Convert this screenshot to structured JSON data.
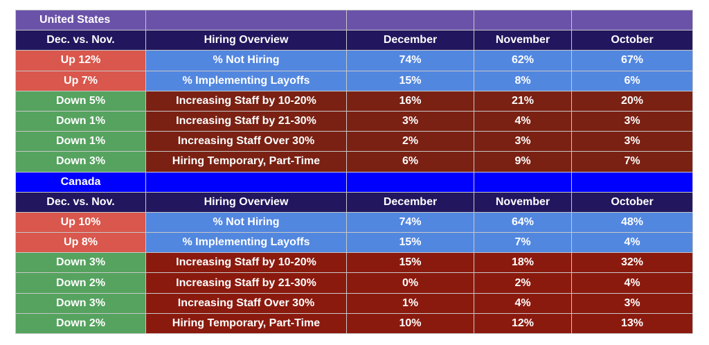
{
  "regions": [
    {
      "name": "United States",
      "headers": [
        "Dec. vs. Nov.",
        "Hiring Overview",
        "December",
        "November",
        "October"
      ],
      "rows": [
        {
          "change": "Up 12%",
          "metric": "% Not Hiring",
          "december": "74%",
          "november": "62%",
          "october": "67%"
        },
        {
          "change": "Up 7%",
          "metric": "% Implementing Layoffs",
          "december": "15%",
          "november": "8%",
          "october": "6%"
        },
        {
          "change": "Down 5%",
          "metric": "Increasing Staff by 10-20%",
          "december": "16%",
          "november": "21%",
          "october": "20%"
        },
        {
          "change": "Down 1%",
          "metric": "Increasing Staff by 21-30%",
          "december": "3%",
          "november": "4%",
          "october": "3%"
        },
        {
          "change": "Down 1%",
          "metric": "Increasing Staff Over 30%",
          "december": "2%",
          "november": "3%",
          "october": "3%"
        },
        {
          "change": "Down 3%",
          "metric": "Hiring Temporary, Part-Time",
          "december": "6%",
          "november": "9%",
          "october": "7%"
        }
      ]
    },
    {
      "name": "Canada",
      "headers": [
        "Dec. vs. Nov.",
        "Hiring Overview",
        "December",
        "November",
        "October"
      ],
      "rows": [
        {
          "change": "Up 10%",
          "metric": "% Not Hiring",
          "december": "74%",
          "november": "64%",
          "october": "48%"
        },
        {
          "change": "Up 8%",
          "metric": "% Implementing Layoffs",
          "december": "15%",
          "november": "7%",
          "october": "4%"
        },
        {
          "change": "Down 3%",
          "metric": "Increasing Staff by 10-20%",
          "december": "15%",
          "november": "18%",
          "october": "32%"
        },
        {
          "change": "Down 2%",
          "metric": "Increasing Staff by 21-30%",
          "december": "0%",
          "november": "2%",
          "october": "4%"
        },
        {
          "change": "Down 3%",
          "metric": "Increasing Staff Over 30%",
          "december": "1%",
          "november": "4%",
          "october": "3%"
        },
        {
          "change": "Down 2%",
          "metric": "Hiring Temporary, Part-Time",
          "december": "10%",
          "november": "12%",
          "october": "13%"
        }
      ]
    }
  ],
  "colors": {
    "us_title_bg": "#6a52a8",
    "canada_title_bg": "#0000ff",
    "header_bg": "#22175e",
    "up_change_bg": "#d9574c",
    "down_change_bg": "#55a35f",
    "up_row_bg": "#5287e0",
    "down_row_bg": "#7a2113"
  }
}
